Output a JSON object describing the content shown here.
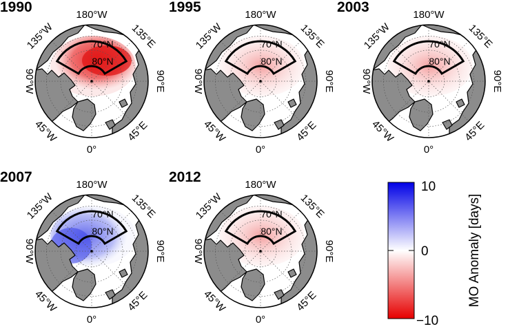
{
  "colorbar": {
    "label": "MO Anomaly [days]",
    "ticks": [
      "10",
      "0",
      "−10"
    ],
    "range": [
      -10,
      10
    ],
    "colors": {
      "high": "#0000e6",
      "mid": "#ffffff",
      "low": "#e60000"
    }
  },
  "map_labels": {
    "top": "180°W",
    "bottom": "0°",
    "right": "90°E",
    "left": "90°W",
    "upper_left": "135°W",
    "upper_right": "135°E",
    "lower_left": "45°W",
    "lower_right": "45°E",
    "lat_70": "70°N",
    "lat_80": "80°N"
  },
  "colors": {
    "land": "#8c8c8c",
    "ocean": "#ffffff",
    "box": "#000000"
  },
  "panels": [
    {
      "year": "1990",
      "tone": "strong-red"
    },
    {
      "year": "1995",
      "tone": "weak-red"
    },
    {
      "year": "2003",
      "tone": "weak-red"
    },
    {
      "year": "2007",
      "tone": "blue"
    },
    {
      "year": "2012",
      "tone": "weak-red"
    }
  ]
}
